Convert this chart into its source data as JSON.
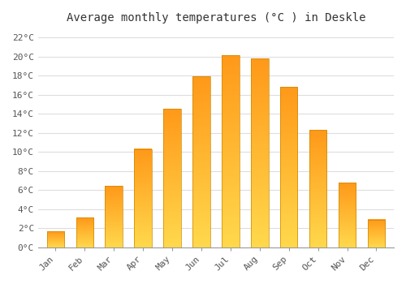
{
  "title": "Average monthly temperatures (°C ) in Deskle",
  "months": [
    "Jan",
    "Feb",
    "Mar",
    "Apr",
    "May",
    "Jun",
    "Jul",
    "Aug",
    "Sep",
    "Oct",
    "Nov",
    "Dec"
  ],
  "temperatures": [
    1.7,
    3.1,
    6.4,
    10.3,
    14.5,
    17.9,
    20.1,
    19.8,
    16.8,
    12.3,
    6.8,
    2.9
  ],
  "bar_color": "#FFA500",
  "background_color": "#FFFFFF",
  "grid_color": "#DDDDDD",
  "yticks": [
    0,
    2,
    4,
    6,
    8,
    10,
    12,
    14,
    16,
    18,
    20,
    22
  ],
  "ylim": [
    0,
    23
  ],
  "title_fontsize": 10,
  "tick_fontsize": 8,
  "font_family": "monospace"
}
